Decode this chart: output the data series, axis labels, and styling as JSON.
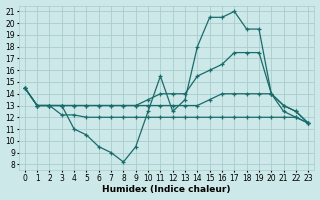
{
  "xlabel": "Humidex (Indice chaleur)",
  "bg_color": "#cce8e8",
  "grid_color": "#aacccc",
  "line_color": "#1a6b6b",
  "xlim": [
    -0.5,
    23.5
  ],
  "ylim": [
    7.5,
    21.5
  ],
  "xticks": [
    0,
    1,
    2,
    3,
    4,
    5,
    6,
    7,
    8,
    9,
    10,
    11,
    12,
    13,
    14,
    15,
    16,
    17,
    18,
    19,
    20,
    21,
    22,
    23
  ],
  "yticks": [
    8,
    9,
    10,
    11,
    12,
    13,
    14,
    15,
    16,
    17,
    18,
    19,
    20,
    21
  ],
  "lines": [
    {
      "x": [
        0,
        1,
        2,
        3,
        4,
        5,
        6,
        7,
        8,
        9,
        10,
        11,
        12,
        13,
        14,
        15,
        16,
        17,
        18,
        19,
        20,
        21,
        22,
        23
      ],
      "y": [
        14.5,
        13,
        13,
        13,
        11,
        10.5,
        9.5,
        9,
        8.2,
        9.5,
        12.5,
        15.5,
        12.5,
        13.5,
        18,
        20.5,
        20.5,
        21,
        19.5,
        19.5,
        14,
        12.5,
        12,
        11.5
      ]
    },
    {
      "x": [
        0,
        1,
        2,
        3,
        4,
        5,
        6,
        7,
        8,
        9,
        10,
        11,
        12,
        13,
        14,
        15,
        16,
        17,
        18,
        19,
        20,
        21,
        22,
        23
      ],
      "y": [
        14.5,
        13,
        13,
        13,
        13,
        13,
        13,
        13,
        13,
        13,
        13.5,
        14,
        14,
        14,
        15.5,
        16,
        16.5,
        17.5,
        17.5,
        17.5,
        14,
        13,
        12.5,
        11.5
      ]
    },
    {
      "x": [
        0,
        1,
        2,
        3,
        4,
        5,
        6,
        7,
        8,
        9,
        10,
        11,
        12,
        13,
        14,
        15,
        16,
        17,
        18,
        19,
        20,
        21,
        22,
        23
      ],
      "y": [
        14.5,
        13,
        13,
        13,
        13,
        13,
        13,
        13,
        13,
        13,
        13,
        13,
        13,
        13,
        13,
        13.5,
        14,
        14,
        14,
        14,
        14,
        13,
        12.5,
        11.5
      ]
    },
    {
      "x": [
        0,
        1,
        2,
        3,
        4,
        5,
        6,
        7,
        8,
        9,
        10,
        11,
        12,
        13,
        14,
        15,
        16,
        17,
        18,
        19,
        20,
        21,
        22,
        23
      ],
      "y": [
        14.5,
        13,
        13,
        12.2,
        12.2,
        12,
        12,
        12,
        12,
        12,
        12,
        12,
        12,
        12,
        12,
        12,
        12,
        12,
        12,
        12,
        12,
        12,
        12,
        11.5
      ]
    }
  ]
}
